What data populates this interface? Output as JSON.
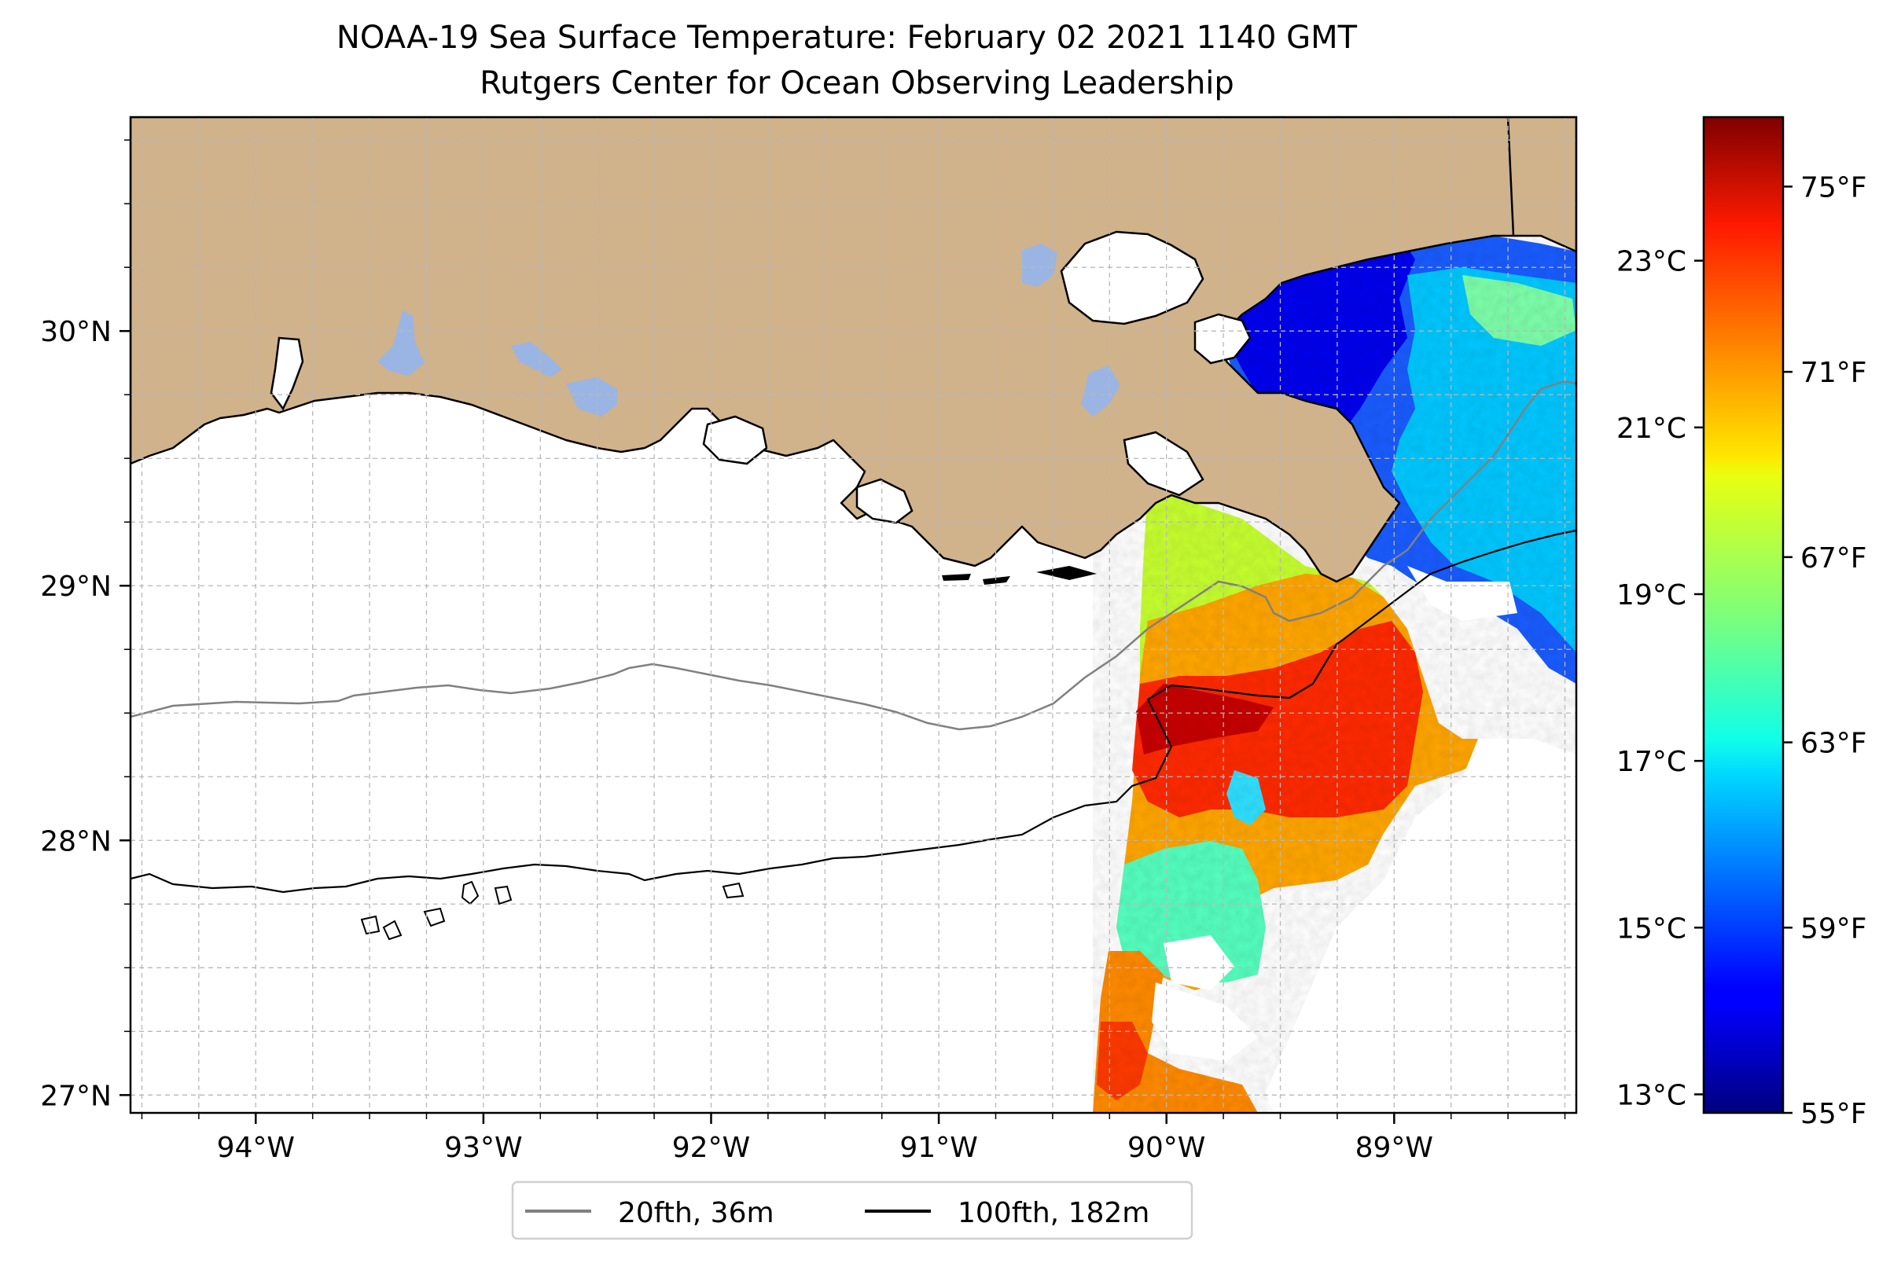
{
  "title": {
    "line1": "NOAA-19 Sea Surface Temperature: February 02 2021 1140 GMT",
    "line2": "Rutgers Center for Ocean Observing Leadership"
  },
  "map": {
    "lon_range": [
      -94.55,
      -88.2
    ],
    "lat_range": [
      26.93,
      30.84
    ],
    "lon_ticks": [
      {
        "value": -94,
        "label": "94°W"
      },
      {
        "value": -93,
        "label": "93°W"
      },
      {
        "value": -92,
        "label": "92°W"
      },
      {
        "value": -91,
        "label": "91°W"
      },
      {
        "value": -90,
        "label": "90°W"
      },
      {
        "value": -89,
        "label": "89°W"
      }
    ],
    "lat_ticks": [
      {
        "value": 27,
        "label": "27°N"
      },
      {
        "value": 28,
        "label": "28°N"
      },
      {
        "value": 29,
        "label": "29°N"
      },
      {
        "value": 30,
        "label": "30°N"
      }
    ],
    "minor_grid_step_deg": 0.25,
    "gridlines": "dashed",
    "colors": {
      "land": "#d0b28b",
      "lakes": "#9ab5e3",
      "coastline": "#000000",
      "grid": "#b8b8b8",
      "cloud_mask": "#ffffff"
    }
  },
  "colorbar": {
    "colormap": "jet",
    "range_F": [
      55,
      76.5
    ],
    "fahrenheit_ticks": [
      {
        "value": 55,
        "label": "55°F"
      },
      {
        "value": 59,
        "label": "59°F"
      },
      {
        "value": 63,
        "label": "63°F"
      },
      {
        "value": 67,
        "label": "67°F"
      },
      {
        "value": 71,
        "label": "71°F"
      },
      {
        "value": 75,
        "label": "75°F"
      }
    ],
    "celsius_ticks": [
      {
        "value": 13,
        "label": "13°C"
      },
      {
        "value": 15,
        "label": "15°C"
      },
      {
        "value": 17,
        "label": "17°C"
      },
      {
        "value": 19,
        "label": "19°C"
      },
      {
        "value": 21,
        "label": "21°C"
      },
      {
        "value": 23,
        "label": "23°C"
      }
    ]
  },
  "legend": {
    "placement": "below-map",
    "entries": [
      {
        "label": "20fth, 36m",
        "color": "#808080"
      },
      {
        "label": "100fth, 182m",
        "color": "#000000"
      }
    ]
  }
}
